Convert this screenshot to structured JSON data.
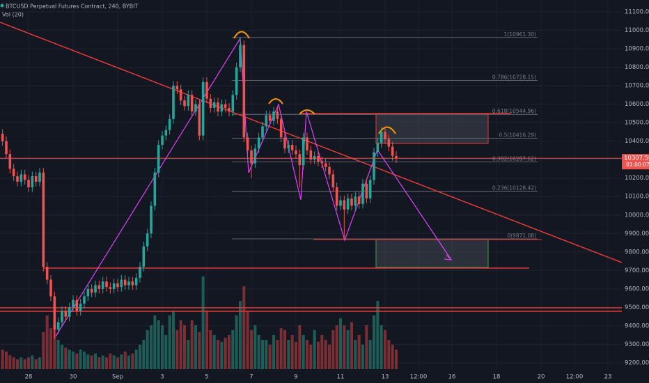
{
  "chart_data": {
    "type": "candlestick",
    "title": "BTCUSD Perpetual Futures Contract, 240, BYBIT",
    "indicator": "Vol (20)",
    "up_color": "#26a69a",
    "down_color": "#ef5350",
    "volume_up_color": "#1d5d57",
    "volume_down_color": "#7b2f35",
    "grid": true,
    "xlim": [
      -6.75,
      663
    ],
    "ylim": [
      9166,
      11164
    ],
    "vlim": [
      0,
      100
    ],
    "xticks": [
      {
        "value": 24,
        "label": "28"
      },
      {
        "value": 72,
        "label": "30"
      },
      {
        "value": 120,
        "label": "Sep"
      },
      {
        "value": 168,
        "label": "3"
      },
      {
        "value": 216,
        "label": "5"
      },
      {
        "value": 264,
        "label": "7"
      },
      {
        "value": 312,
        "label": "9"
      },
      {
        "value": 360,
        "label": "11"
      },
      {
        "value": 408,
        "label": "13"
      },
      {
        "value": 444,
        "label": "12:00"
      },
      {
        "value": 480,
        "label": "16"
      },
      {
        "value": 528,
        "label": "18"
      },
      {
        "value": 576,
        "label": "20"
      },
      {
        "value": 612,
        "label": "12:00"
      },
      {
        "value": 648,
        "label": "23"
      }
    ],
    "yticks": [
      {
        "value": 9200,
        "label": "9200.00"
      },
      {
        "value": 9300,
        "label": "9300.00"
      },
      {
        "value": 9400,
        "label": "9400.00"
      },
      {
        "value": 9500,
        "label": "9500.00"
      },
      {
        "value": 9600,
        "label": "9600.00"
      },
      {
        "value": 9700,
        "label": "9700.00"
      },
      {
        "value": 9800,
        "label": "9800.00"
      },
      {
        "value": 9900,
        "label": "9900.00"
      },
      {
        "value": 10000,
        "label": "10000.00"
      },
      {
        "value": 10100,
        "label": "10100.00"
      },
      {
        "value": 10200,
        "label": "10200.00"
      },
      {
        "value": 10300,
        "label": "10300.00"
      },
      {
        "value": 10400,
        "label": "10400.00"
      },
      {
        "value": 10500,
        "label": "10500.00"
      },
      {
        "value": 10600,
        "label": "10600.00"
      },
      {
        "value": 10700,
        "label": "10700.00"
      },
      {
        "value": 10800,
        "label": "10800.00"
      },
      {
        "value": 10900,
        "label": "10900.00"
      },
      {
        "value": 11000,
        "label": "11000.00"
      },
      {
        "value": 11100,
        "label": "11100.00"
      }
    ],
    "last_price": {
      "value": 10307.5,
      "label": "10307.50"
    },
    "countdown": "01:00:07",
    "fib_levels": [
      {
        "value": 10961.3,
        "label": "1(10961.30)"
      },
      {
        "value": 10728.15,
        "label": "0.786(10728.15)"
      },
      {
        "value": 10544.96,
        "label": "0.618(10544.96)"
      },
      {
        "value": 10416.29,
        "label": "0.5(10416.29)"
      },
      {
        "value": 10287.62,
        "label": "0.382(10287.62)"
      },
      {
        "value": 10128.42,
        "label": "0.236(10128.42)"
      },
      {
        "value": 9871.08,
        "label": "0(9871.08)"
      }
    ],
    "x": [
      -4,
      0,
      4,
      8,
      12,
      16,
      20,
      24,
      28,
      32,
      36,
      40,
      44,
      48,
      52,
      56,
      60,
      64,
      68,
      72,
      76,
      80,
      84,
      88,
      92,
      96,
      100,
      104,
      108,
      112,
      116,
      120,
      124,
      128,
      132,
      136,
      140,
      144,
      148,
      152,
      156,
      160,
      164,
      168,
      172,
      176,
      180,
      184,
      188,
      192,
      196,
      200,
      204,
      208,
      212,
      216,
      220,
      224,
      228,
      232,
      236,
      240,
      244,
      248,
      252,
      256,
      260,
      264,
      268,
      272,
      276,
      280,
      284,
      288,
      292,
      296,
      300,
      304,
      308,
      312,
      316,
      320,
      324,
      328,
      332,
      336,
      340,
      344,
      348,
      352,
      356,
      360,
      364,
      368,
      372,
      376,
      380,
      384,
      388,
      392,
      396,
      400,
      404,
      408,
      412,
      416,
      420
    ],
    "open": [
      10440,
      10400,
      10330,
      10250,
      10210,
      10180,
      10220,
      10190,
      10150,
      10210,
      10180,
      10230,
      9720,
      9650,
      9560,
      9380,
      9420,
      9480,
      9450,
      9500,
      9540,
      9480,
      9520,
      9560,
      9600,
      9580,
      9620,
      9600,
      9640,
      9610,
      9600,
      9630,
      9610,
      9650,
      9620,
      9640,
      9620,
      9660,
      9720,
      9830,
      9900,
      10050,
      10230,
      10380,
      10430,
      10460,
      10520,
      10700,
      10680,
      10620,
      10590,
      10650,
      10560,
      10600,
      10430,
      10720,
      10630,
      10580,
      10610,
      10560,
      10600,
      10580,
      10560,
      10650,
      10800,
      10920,
      10420,
      10350,
      10280,
      10360,
      10420,
      10480,
      10540,
      10510,
      10560,
      10520,
      10420,
      10360,
      10380,
      10350,
      10330,
      10270,
      10420,
      10350,
      10300,
      10320,
      10290,
      10280,
      10260,
      10220,
      10150,
      10050,
      10080,
      10030,
      10090,
      10050,
      10100,
      10060,
      10170,
      10090,
      10190,
      10340,
      10390,
      10450,
      10410,
      10370,
      10320
    ],
    "high": [
      10465,
      10425,
      10355,
      10275,
      10235,
      10245,
      10245,
      10215,
      10235,
      10235,
      10255,
      10255,
      9745,
      9675,
      9585,
      9445,
      9505,
      9505,
      9525,
      9565,
      9565,
      9545,
      9585,
      9625,
      9625,
      9645,
      9645,
      9665,
      9665,
      9635,
      9655,
      9655,
      9675,
      9675,
      9665,
      9665,
      9685,
      9745,
      9855,
      9925,
      10075,
      10255,
      10405,
      10455,
      10485,
      10545,
      10725,
      10725,
      10705,
      10645,
      10675,
      10675,
      10625,
      10625,
      10745,
      10745,
      10655,
      10635,
      10635,
      10625,
      10625,
      10605,
      10675,
      10825,
      10961.3,
      10945,
      10445,
      10375,
      10385,
      10445,
      10505,
      10565,
      10565,
      10585,
      10585,
      10545,
      10445,
      10405,
      10405,
      10375,
      10355,
      10445,
      10445,
      10375,
      10345,
      10345,
      10315,
      10305,
      10285,
      10245,
      10175,
      10105,
      10105,
      10115,
      10115,
      10125,
      10125,
      10195,
      10195,
      10215,
      10365,
      10415,
      10475,
      10475,
      10435,
      10395,
      10345
    ],
    "low": [
      10375,
      10305,
      10225,
      10185,
      10155,
      10155,
      10165,
      10125,
      10125,
      10155,
      10155,
      9695,
      9625,
      9535,
      9330,
      9355,
      9395,
      9425,
      9425,
      9475,
      9455,
      9455,
      9495,
      9535,
      9555,
      9555,
      9575,
      9575,
      9585,
      9575,
      9575,
      9585,
      9585,
      9595,
      9595,
      9595,
      9595,
      9635,
      9695,
      9805,
      9875,
      10025,
      10205,
      10355,
      10405,
      10435,
      10495,
      10655,
      10595,
      10565,
      10565,
      10535,
      10535,
      10405,
      10405,
      10605,
      10555,
      10555,
      10535,
      10535,
      10555,
      10535,
      10535,
      10625,
      10775,
      10395,
      10325,
      10200,
      10255,
      10335,
      10395,
      10455,
      10485,
      10485,
      10495,
      10395,
      10335,
      10335,
      10325,
      10305,
      10150,
      10245,
      10325,
      10275,
      10275,
      10265,
      10255,
      10235,
      10195,
      10125,
      10025,
      10025,
      9871.08,
      10005,
      10025,
      10025,
      10035,
      10035,
      10065,
      10065,
      10165,
      10315,
      10365,
      10385,
      10345,
      10295,
      10282.5
    ],
    "close": [
      10400,
      10330,
      10250,
      10210,
      10180,
      10220,
      10190,
      10150,
      10210,
      10180,
      10230,
      9720,
      9650,
      9560,
      9380,
      9420,
      9480,
      9450,
      9500,
      9540,
      9480,
      9520,
      9560,
      9600,
      9580,
      9620,
      9600,
      9640,
      9610,
      9600,
      9630,
      9610,
      9650,
      9620,
      9640,
      9620,
      9660,
      9720,
      9830,
      9900,
      10050,
      10230,
      10380,
      10430,
      10460,
      10520,
      10700,
      10680,
      10620,
      10590,
      10650,
      10560,
      10600,
      10430,
      10720,
      10630,
      10580,
      10610,
      10560,
      10600,
      10580,
      10560,
      10650,
      10800,
      10920,
      10420,
      10350,
      10280,
      10360,
      10420,
      10480,
      10540,
      10510,
      10560,
      10520,
      10420,
      10360,
      10380,
      10350,
      10330,
      10270,
      10420,
      10350,
      10300,
      10320,
      10290,
      10280,
      10260,
      10220,
      10150,
      10050,
      10080,
      10030,
      10090,
      10050,
      10100,
      10060,
      10170,
      10090,
      10190,
      10340,
      10390,
      10450,
      10410,
      10370,
      10320,
      10307.5
    ],
    "volume": [
      20,
      18,
      14,
      12,
      10,
      12,
      10,
      12,
      14,
      10,
      12,
      38,
      55,
      42,
      45,
      30,
      25,
      22,
      20,
      18,
      16,
      20,
      18,
      15,
      14,
      16,
      12,
      14,
      12,
      16,
      14,
      12,
      15,
      18,
      14,
      16,
      20,
      25,
      30,
      40,
      45,
      55,
      50,
      45,
      35,
      55,
      60,
      40,
      50,
      45,
      30,
      50,
      45,
      38,
      95,
      60,
      40,
      35,
      30,
      28,
      32,
      35,
      40,
      55,
      70,
      85,
      60,
      40,
      45,
      35,
      30,
      30,
      25,
      35,
      30,
      42,
      40,
      30,
      35,
      28,
      45,
      35,
      30,
      25,
      40,
      28,
      35,
      30,
      25,
      40,
      45,
      52,
      45,
      40,
      48,
      30,
      35,
      25,
      45,
      30,
      55,
      70,
      45,
      40,
      30,
      25,
      20
    ]
  }
}
